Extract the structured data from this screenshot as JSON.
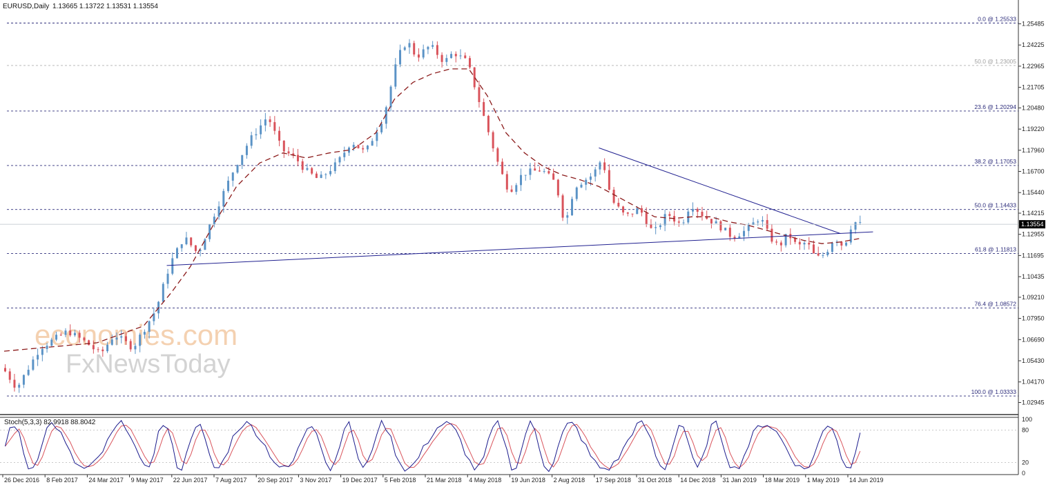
{
  "header": {
    "symbol": "EURUSD,Daily",
    "ohlc": "1.13665 1.13722 1.13531 1.13554"
  },
  "indicator_label": "Stoch(5,3,3) 82.9918 88.8042",
  "watermark": {
    "line1": "economies.com",
    "line2": "FxNewsToday"
  },
  "colors": {
    "bull": "#5b93c6",
    "bear": "#d9535b",
    "ma": "#8b1a1a",
    "fib": "#2b2b7a",
    "trend": "#1f1f8f",
    "stoch_main": "#1a1a8c",
    "stoch_signal": "#d9535b",
    "axis_text": "#222222"
  },
  "chart_data": {
    "type": "candlestick",
    "x_labels": [
      "26 Dec 2016",
      "8 Feb 2017",
      "24 Mar 2017",
      "9 May 2017",
      "22 Jun 2017",
      "7 Aug 2017",
      "20 Sep 2017",
      "3 Nov 2017",
      "19 Dec 2017",
      "5 Feb 2018",
      "21 Mar 2018",
      "4 May 2018",
      "19 Jun 2018",
      "2 Aug 2018",
      "17 Sep 2018",
      "31 Oct 2018",
      "14 Dec 2018",
      "31 Jan 2019",
      "18 Mar 2019",
      "1 May 2019",
      "14 Jun 2019"
    ],
    "y_ticks": [
      "1.25485",
      "1.24225",
      "1.22965",
      "1.21705",
      "1.20480",
      "1.19220",
      "1.17960",
      "1.16700",
      "1.15440",
      "1.14215",
      "1.12955",
      "1.11695",
      "1.10435",
      "1.09210",
      "1.07950",
      "1.06690",
      "1.05430",
      "1.04170",
      "1.02945"
    ],
    "y_range": [
      1.0235,
      1.26
    ],
    "current_price": "1.13554",
    "fib_levels": [
      {
        "label": "0.0 @ 1.25533",
        "value": 1.25533
      },
      {
        "label": "50.0 @ 1.23005",
        "value": 1.23005,
        "faint": true
      },
      {
        "label": "23.6 @ 1.20294",
        "value": 1.20294
      },
      {
        "label": "38.2 @ 1.17053",
        "value": 1.17053
      },
      {
        "label": "50.0 @ 1.14433",
        "value": 1.14433
      },
      {
        "label": "61.8 @ 1.11813",
        "value": 1.11813
      },
      {
        "label": "76.4 @ 1.08572",
        "value": 1.08572
      },
      {
        "label": "100.0 @ 1.03333",
        "value": 1.03333
      }
    ],
    "price_path": [
      [
        0,
        1.05
      ],
      [
        3,
        1.038
      ],
      [
        8,
        1.062
      ],
      [
        14,
        1.072
      ],
      [
        18,
        1.065
      ],
      [
        21,
        1.058
      ],
      [
        24,
        1.07
      ],
      [
        28,
        1.062
      ],
      [
        33,
        1.085
      ],
      [
        36,
        1.112
      ],
      [
        39,
        1.128
      ],
      [
        42,
        1.118
      ],
      [
        46,
        1.145
      ],
      [
        50,
        1.17
      ],
      [
        53,
        1.185
      ],
      [
        57,
        1.2
      ],
      [
        60,
        1.18
      ],
      [
        63,
        1.175
      ],
      [
        65,
        1.168
      ],
      [
        68,
        1.162
      ],
      [
        72,
        1.172
      ],
      [
        75,
        1.185
      ],
      [
        78,
        1.178
      ],
      [
        82,
        1.2
      ],
      [
        85,
        1.235
      ],
      [
        87,
        1.245
      ],
      [
        89,
        1.235
      ],
      [
        92,
        1.242
      ],
      [
        95,
        1.232
      ],
      [
        97,
        1.238
      ],
      [
        100,
        1.232
      ],
      [
        104,
        1.195
      ],
      [
        107,
        1.168
      ],
      [
        109,
        1.155
      ],
      [
        112,
        1.166
      ],
      [
        116,
        1.168
      ],
      [
        119,
        1.16
      ],
      [
        121,
        1.135
      ],
      [
        123,
        1.158
      ],
      [
        127,
        1.165
      ],
      [
        129,
        1.175
      ],
      [
        131,
        1.15
      ],
      [
        134,
        1.14
      ],
      [
        137,
        1.145
      ],
      [
        140,
        1.13
      ],
      [
        143,
        1.142
      ],
      [
        146,
        1.135
      ],
      [
        148,
        1.148
      ],
      [
        151,
        1.14
      ],
      [
        154,
        1.135
      ],
      [
        157,
        1.128
      ],
      [
        160,
        1.132
      ],
      [
        163,
        1.14
      ],
      [
        165,
        1.128
      ],
      [
        167,
        1.122
      ],
      [
        169,
        1.13
      ],
      [
        171,
        1.122
      ],
      [
        173,
        1.125
      ],
      [
        175,
        1.115
      ],
      [
        177,
        1.118
      ],
      [
        179,
        1.128
      ],
      [
        181,
        1.122
      ],
      [
        183,
        1.138
      ],
      [
        184,
        1.1355
      ]
    ],
    "ma_path": [
      [
        0,
        1.06
      ],
      [
        20,
        1.065
      ],
      [
        30,
        1.075
      ],
      [
        36,
        1.095
      ],
      [
        40,
        1.11
      ],
      [
        45,
        1.135
      ],
      [
        50,
        1.158
      ],
      [
        55,
        1.172
      ],
      [
        60,
        1.178
      ],
      [
        65,
        1.175
      ],
      [
        70,
        1.178
      ],
      [
        75,
        1.18
      ],
      [
        80,
        1.19
      ],
      [
        84,
        1.21
      ],
      [
        88,
        1.22
      ],
      [
        92,
        1.225
      ],
      [
        96,
        1.228
      ],
      [
        100,
        1.228
      ],
      [
        104,
        1.212
      ],
      [
        108,
        1.19
      ],
      [
        112,
        1.178
      ],
      [
        116,
        1.17
      ],
      [
        120,
        1.165
      ],
      [
        124,
        1.162
      ],
      [
        128,
        1.158
      ],
      [
        132,
        1.152
      ],
      [
        136,
        1.146
      ],
      [
        140,
        1.14
      ],
      [
        144,
        1.139
      ],
      [
        148,
        1.14
      ],
      [
        152,
        1.14
      ],
      [
        156,
        1.137
      ],
      [
        160,
        1.135
      ],
      [
        164,
        1.132
      ],
      [
        168,
        1.129
      ],
      [
        172,
        1.126
      ],
      [
        176,
        1.124
      ],
      [
        180,
        1.125
      ],
      [
        184,
        1.127
      ]
    ],
    "trend_lines": [
      {
        "from": [
          35,
          1.111
        ],
        "to": [
          187,
          1.131
        ]
      },
      {
        "from": [
          128,
          1.181
        ],
        "to": [
          180,
          1.13
        ]
      }
    ],
    "stoch_levels": [
      "100",
      "80",
      "20",
      "0"
    ]
  }
}
